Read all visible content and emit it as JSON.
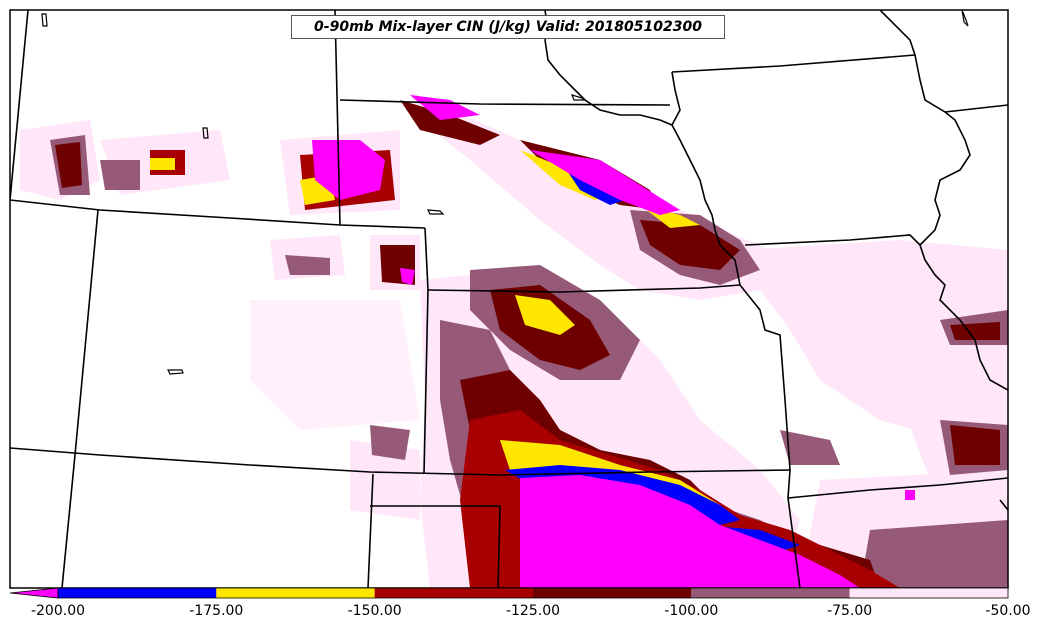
{
  "title": "0-90mb Mix-layer CIN (J/kg) Valid: 201805102300",
  "colorbar": {
    "ticks": [
      "-200.00",
      "-175.00",
      "-150.00",
      "-125.00",
      "-100.00",
      "-75.00",
      "-50.00"
    ],
    "bins": [
      {
        "from": -200,
        "to": -175,
        "color": "#0000ff"
      },
      {
        "from": -175,
        "to": -150,
        "color": "#ffe600"
      },
      {
        "from": -150,
        "to": -125,
        "color": "#a80000"
      },
      {
        "from": -125,
        "to": -100,
        "color": "#6e0000"
      },
      {
        "from": -100,
        "to": -75,
        "color": "#965a78"
      },
      {
        "from": -75,
        "to": -50,
        "color": "#ffe6f8"
      }
    ],
    "extend_color": "#ff00ff"
  }
}
